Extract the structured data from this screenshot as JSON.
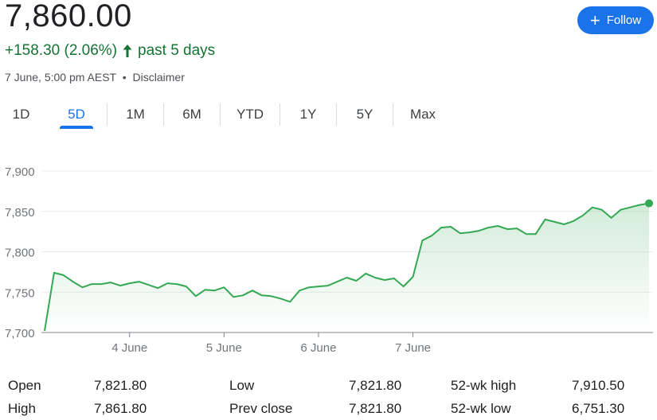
{
  "quote": {
    "price": "7,860.00",
    "change": "+158.30 (2.06%)",
    "period": "past 5 days",
    "timestamp": "7 June, 5:00 pm AEST",
    "separator": "•",
    "disclaimer": "Disclaimer"
  },
  "follow": {
    "icon": "plus-icon",
    "label": "Follow",
    "color": "#1a73e8"
  },
  "tabs": [
    {
      "label": "1D",
      "active": false
    },
    {
      "label": "5D",
      "active": true
    },
    {
      "label": "1M",
      "active": false
    },
    {
      "label": "6M",
      "active": false
    },
    {
      "label": "YTD",
      "active": false
    },
    {
      "label": "1Y",
      "active": false
    },
    {
      "label": "5Y",
      "active": false
    },
    {
      "label": "Max",
      "active": false
    }
  ],
  "chart_data": {
    "type": "area",
    "ylim": [
      7700,
      7910
    ],
    "yticks": [
      7700,
      7750,
      7800,
      7850,
      7900
    ],
    "ytick_labels": [
      "7,700",
      "7,750",
      "7,800",
      "7,850",
      "7,900"
    ],
    "xtick_labels": [
      "4 June",
      "5 June",
      "6 June",
      "7 June"
    ],
    "xtick_positions": [
      9,
      19,
      29,
      39
    ],
    "grid": true,
    "line_color": "#34a853",
    "series": [
      {
        "values": [
          7702,
          7774,
          7771,
          7763,
          7756,
          7760,
          7760,
          7762,
          7758,
          7761,
          7763,
          7759,
          7755,
          7761,
          7760,
          7757,
          7745,
          7753,
          7752,
          7756,
          7744,
          7746,
          7752,
          7746,
          7745,
          7742,
          7738,
          7752,
          7756,
          7757,
          7758,
          7763,
          7768,
          7764,
          7773,
          7768,
          7765,
          7767,
          7757,
          7769,
          7814,
          7820,
          7830,
          7831,
          7823,
          7824,
          7826,
          7830,
          7832,
          7828,
          7829,
          7822,
          7822,
          7840,
          7837,
          7834,
          7838,
          7845,
          7855,
          7852,
          7842,
          7852,
          7855,
          7858,
          7860
        ]
      }
    ]
  },
  "stats": {
    "row1": {
      "open_label": "Open",
      "open_value": "7,821.80",
      "low_label": "Low",
      "low_value": "7,821.80",
      "high52_label": "52-wk high",
      "high52_value": "7,910.50"
    },
    "row2": {
      "high_label": "High",
      "high_value": "7,861.80",
      "prev_label": "Prev close",
      "prev_value": "7,821.80",
      "low52_label": "52-wk low",
      "low52_value": "6,751.30"
    }
  }
}
